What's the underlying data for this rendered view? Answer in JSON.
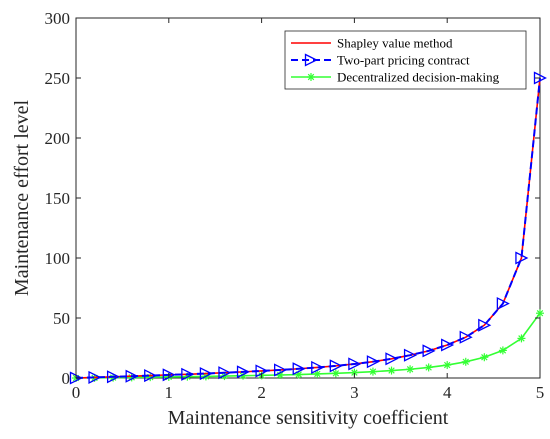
{
  "chart_data": {
    "type": "line",
    "title": "",
    "xlabel": "Maintenance sensitivity coefficient",
    "ylabel": "Maintenance effort level",
    "xlim": [
      0,
      5
    ],
    "ylim": [
      0,
      300
    ],
    "xticks": [
      "0",
      "1",
      "2",
      "3",
      "4",
      "5"
    ],
    "yticks": [
      "0",
      "50",
      "100",
      "150",
      "200",
      "250",
      "300"
    ],
    "grid": false,
    "legend_position": "top-right",
    "x": [
      0,
      0.2,
      0.4,
      0.6,
      0.8,
      1.0,
      1.2,
      1.4,
      1.6,
      1.8,
      2.0,
      2.2,
      2.4,
      2.6,
      2.8,
      3.0,
      3.2,
      3.4,
      3.6,
      3.8,
      4.0,
      4.2,
      4.4,
      4.6,
      4.8,
      5.0
    ],
    "series": [
      {
        "name": "Shapley value method",
        "color": "#ff0000",
        "line_style": "solid",
        "marker": "none",
        "values": [
          0,
          0.5,
          1.0,
          1.5,
          2.0,
          2.6,
          3.1,
          3.7,
          4.4,
          5.1,
          5.9,
          6.7,
          7.7,
          8.8,
          10.1,
          11.7,
          13.6,
          16.0,
          19.0,
          22.6,
          27.5,
          34.0,
          44.0,
          62.0,
          100.0,
          250.0
        ]
      },
      {
        "name": "Two-part pricing contract",
        "color": "#0000ff",
        "line_style": "dashed",
        "marker": "triangle-right",
        "values": [
          0,
          0.5,
          1.0,
          1.5,
          2.0,
          2.6,
          3.1,
          3.7,
          4.4,
          5.1,
          5.9,
          6.7,
          7.7,
          8.8,
          10.1,
          11.7,
          13.6,
          16.0,
          19.0,
          22.6,
          27.5,
          34.0,
          44.0,
          62.0,
          100.0,
          250.0
        ]
      },
      {
        "name": "Decentralized decision-making",
        "color": "#33ff33",
        "line_style": "solid",
        "marker": "asterisk",
        "values": [
          0,
          0.1,
          0.3,
          0.5,
          0.7,
          0.9,
          1.1,
          1.3,
          1.6,
          1.9,
          2.2,
          2.5,
          2.9,
          3.4,
          3.9,
          4.5,
          5.3,
          6.2,
          7.3,
          8.8,
          10.8,
          13.5,
          17.3,
          23.0,
          33.0,
          54.0
        ]
      }
    ]
  }
}
